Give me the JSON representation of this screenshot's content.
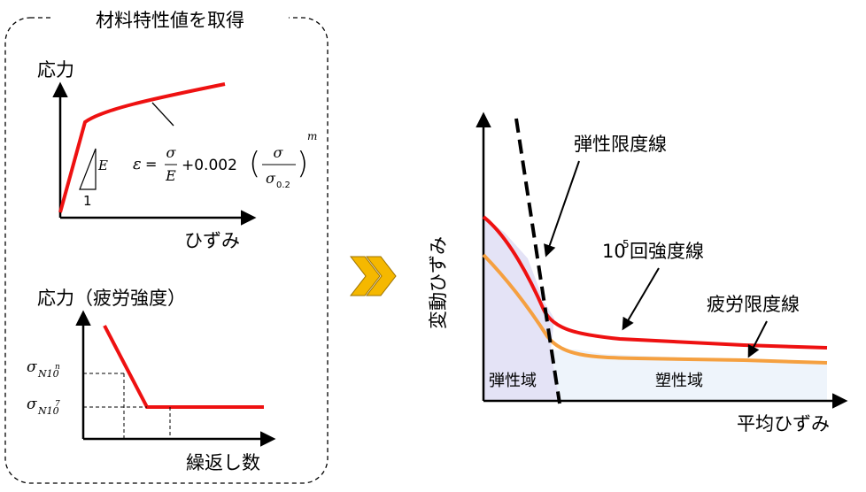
{
  "left_panel": {
    "title": "材料特性値を取得",
    "stress_strain": {
      "y_label": "応力",
      "x_label": "ひずみ",
      "slope_label": "E",
      "slope_unit": "1",
      "equation": {
        "lhs": "ε",
        "eq": "=",
        "frac1_num": "σ",
        "frac1_den": "E",
        "plus": "+0.002",
        "frac2_num": "σ",
        "frac2_den": "σ",
        "frac2_den_sub": "0.2",
        "exponent": "m"
      }
    },
    "sn": {
      "y_label": "応力（疲労強度）",
      "x_label": "繰返し数",
      "y_tick_upper": "σ",
      "y_tick_upper_sub": "N10",
      "y_tick_upper_sup": "n",
      "y_tick_lower": "σ",
      "y_tick_lower_sub": "N10",
      "y_tick_lower_sup": "7"
    }
  },
  "arrow_icon": "double-chevron-right",
  "right_panel": {
    "y_label": "変動ひずみ",
    "x_label": "平均ひずみ",
    "elastic_limit_label": "弾性限度線",
    "strength_label_base": "10",
    "strength_label_sup": "5",
    "strength_label_rest": "回強度線",
    "fatigue_label": "疲労限度線",
    "elastic_region": "弾性域",
    "plastic_region": "塑性域"
  },
  "colors": {
    "red": "#ee1111",
    "orange": "#f5a040",
    "elastic_fill": "#e4e3f6",
    "plastic_fill": "#eef4fb",
    "chevron": "#f5b800"
  }
}
